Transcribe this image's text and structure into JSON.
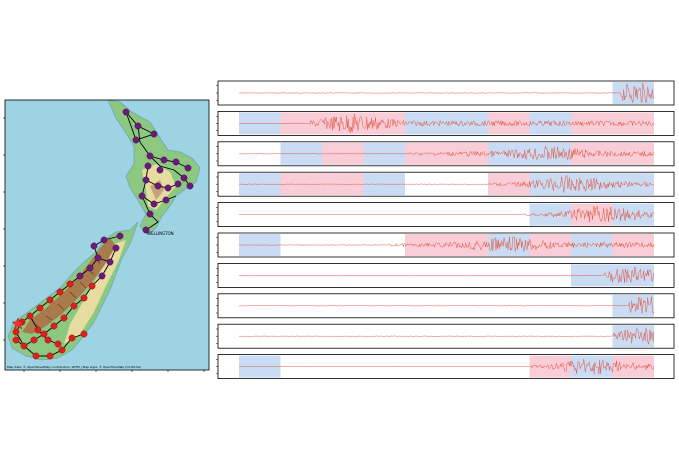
{
  "map": {
    "city_labels": [
      "WELLINGTON"
    ],
    "attribution": "Map data: © OpenStreetMap contributors, SRTM | Map style: © OpenTopoMap (CC-BY-SA)",
    "colors": {
      "sea": "#9dd3e3",
      "land_low": "#8dc880",
      "land_mid": "#e6dca0",
      "land_high": "#a97a4c",
      "north_station": "#6a1a78",
      "south_station": "#dc1f1f",
      "link": "#000000"
    }
  },
  "traces": {
    "count": 10,
    "colors": {
      "signal": "#e0533f",
      "blue_window": "#c9dcf4",
      "pink_window": "#f9cdd7",
      "frame": "#000000"
    }
  }
}
